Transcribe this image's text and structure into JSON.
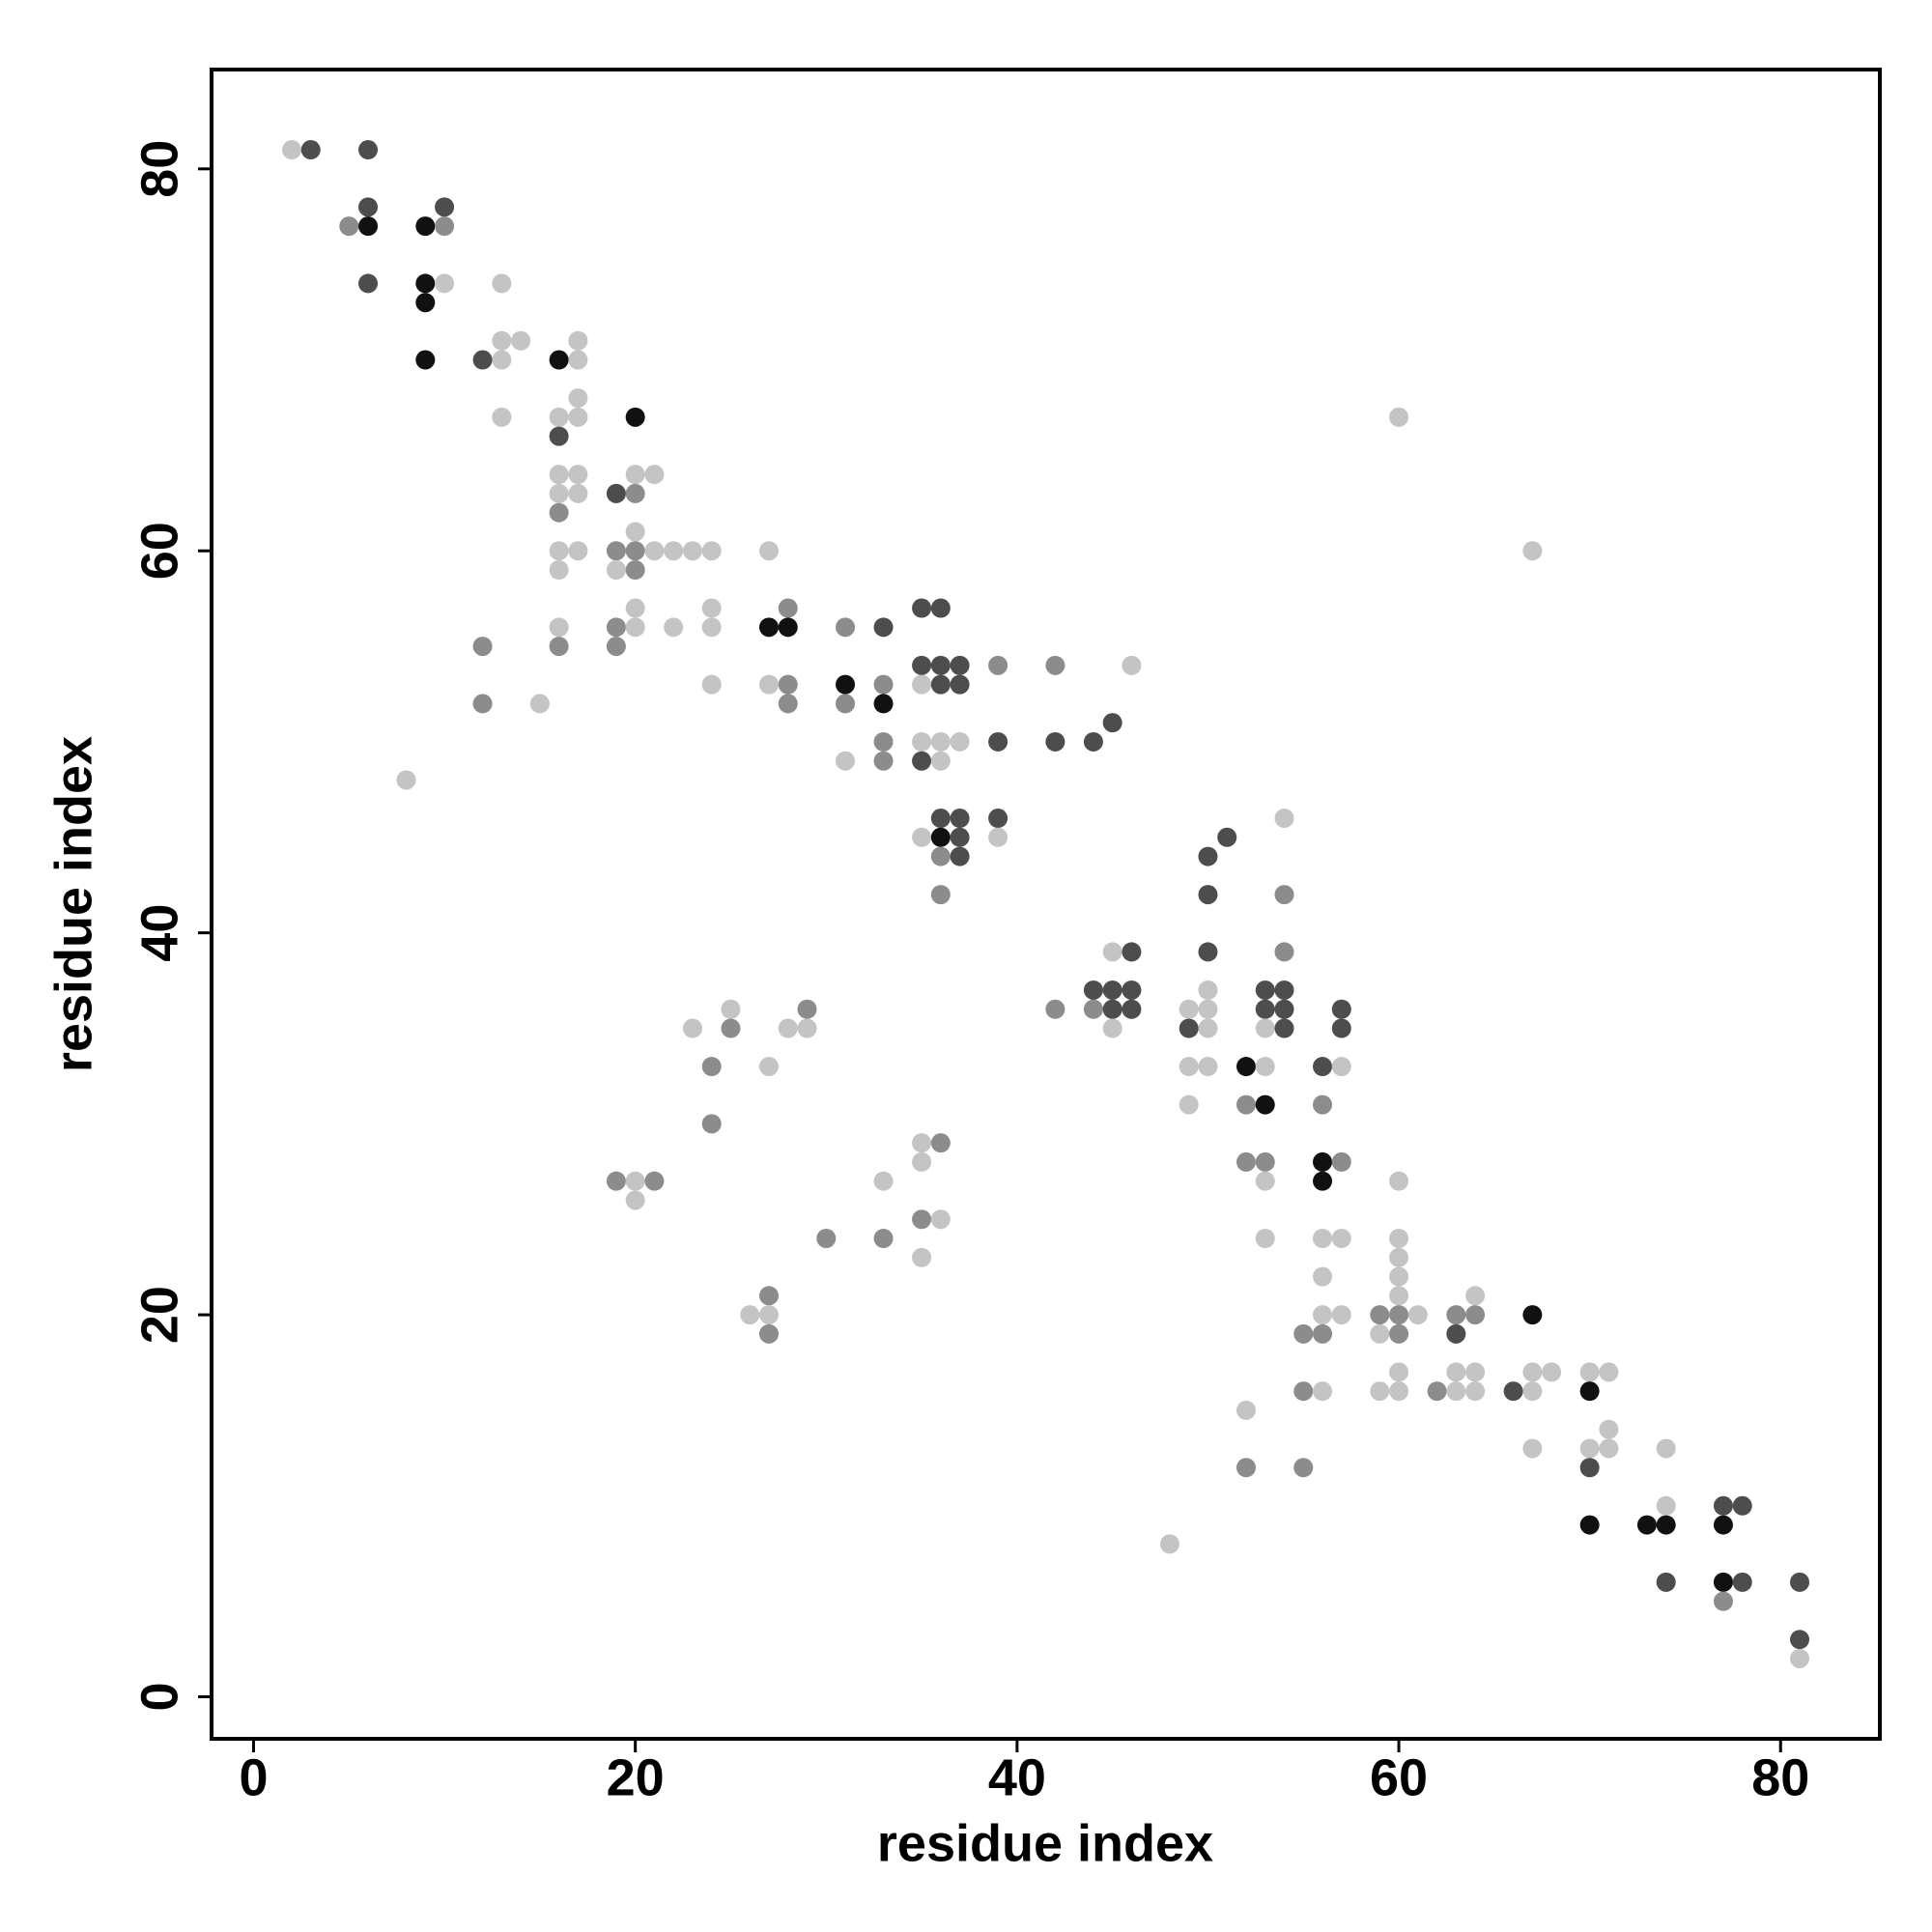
{
  "chart_data": {
    "type": "scatter",
    "xlabel": "residue index",
    "ylabel": "residue index",
    "xlim": [
      -2.2,
      85.2
    ],
    "ylim": [
      -2.2,
      85.2
    ],
    "xticks": [
      0,
      20,
      40,
      60,
      80
    ],
    "yticks": [
      0,
      20,
      40,
      60,
      80
    ],
    "grid": false,
    "x": [
      2,
      3,
      6,
      6,
      10,
      5,
      6,
      9,
      10,
      6,
      9,
      10,
      13,
      9,
      13,
      14,
      17,
      9,
      12,
      13,
      16,
      17,
      17,
      13,
      16,
      17,
      20,
      60,
      16,
      16,
      17,
      20,
      21,
      16,
      17,
      19,
      20,
      16,
      20,
      16,
      17,
      19,
      20,
      21,
      22,
      23,
      24,
      27,
      67,
      16,
      19,
      20,
      20,
      24,
      28,
      35,
      36,
      16,
      19,
      20,
      22,
      24,
      27,
      28,
      31,
      33,
      12,
      16,
      19,
      35,
      36,
      37,
      39,
      42,
      46,
      24,
      27,
      28,
      31,
      33,
      35,
      36,
      37,
      12,
      15,
      28,
      31,
      33,
      45,
      33,
      35,
      36,
      37,
      39,
      42,
      44,
      31,
      33,
      35,
      36,
      8,
      36,
      37,
      39,
      54,
      35,
      36,
      37,
      39,
      51,
      36,
      37,
      50,
      36,
      50,
      54,
      45,
      46,
      50,
      54,
      44,
      45,
      46,
      50,
      53,
      54,
      25,
      29,
      42,
      44,
      45,
      46,
      49,
      50,
      53,
      54,
      57,
      23,
      25,
      28,
      29,
      45,
      49,
      50,
      53,
      54,
      57,
      24,
      27,
      49,
      50,
      52,
      53,
      56,
      57,
      49,
      52,
      53,
      56,
      24,
      35,
      36,
      35,
      52,
      53,
      56,
      57,
      19,
      20,
      21,
      33,
      53,
      56,
      60,
      20,
      35,
      36,
      30,
      33,
      53,
      56,
      57,
      60,
      35,
      60,
      56,
      60,
      27,
      60,
      64,
      26,
      27,
      56,
      57,
      59,
      60,
      61,
      63,
      64,
      67,
      27,
      55,
      56,
      59,
      60,
      63,
      60,
      63,
      64,
      67,
      68,
      70,
      71,
      55,
      56,
      59,
      60,
      62,
      63,
      64,
      66,
      67,
      70,
      52,
      71,
      67,
      70,
      71,
      74,
      52,
      55,
      70,
      74,
      77,
      78,
      70,
      73,
      74,
      77,
      48,
      74,
      77,
      78,
      81,
      77,
      81,
      81
    ],
    "y": [
      81,
      81,
      81,
      78,
      78,
      77,
      77,
      77,
      77,
      74,
      74,
      74,
      74,
      73,
      71,
      71,
      71,
      70,
      70,
      70,
      70,
      70,
      68,
      67,
      67,
      67,
      67,
      67,
      66,
      64,
      64,
      64,
      64,
      63,
      63,
      63,
      63,
      62,
      61,
      60,
      60,
      60,
      60,
      60,
      60,
      60,
      60,
      60,
      60,
      59,
      59,
      59,
      57,
      57,
      57,
      57,
      57,
      56,
      56,
      56,
      56,
      56,
      56,
      56,
      56,
      56,
      55,
      55,
      55,
      54,
      54,
      54,
      54,
      54,
      54,
      53,
      53,
      53,
      53,
      53,
      53,
      53,
      53,
      52,
      52,
      52,
      52,
      52,
      51,
      50,
      50,
      50,
      50,
      50,
      50,
      50,
      49,
      49,
      49,
      49,
      48,
      46,
      46,
      46,
      46,
      45,
      45,
      45,
      45,
      45,
      44,
      44,
      44,
      42,
      42,
      42,
      39,
      39,
      39,
      39,
      37,
      37,
      37,
      37,
      37,
      37,
      36,
      36,
      36,
      36,
      36,
      36,
      36,
      36,
      36,
      36,
      36,
      35,
      35,
      35,
      35,
      35,
      35,
      35,
      35,
      35,
      35,
      33,
      33,
      33,
      33,
      33,
      33,
      33,
      33,
      31,
      31,
      31,
      31,
      30,
      29,
      29,
      28,
      28,
      28,
      28,
      28,
      27,
      27,
      27,
      27,
      27,
      27,
      27,
      26,
      25,
      25,
      24,
      24,
      24,
      24,
      24,
      24,
      23,
      23,
      22,
      22,
      21,
      21,
      21,
      20,
      20,
      20,
      20,
      20,
      20,
      20,
      20,
      20,
      20,
      19,
      19,
      19,
      19,
      19,
      19,
      17,
      17,
      17,
      17,
      17,
      17,
      17,
      16,
      16,
      16,
      16,
      16,
      16,
      16,
      16,
      16,
      16,
      15,
      14,
      13,
      13,
      13,
      13,
      12,
      12,
      12,
      10,
      10,
      10,
      9,
      9,
      9,
      9,
      8,
      6,
      6,
      6,
      6,
      5,
      3,
      2
    ],
    "colors": [
      "#c4c4c4",
      "#4d4d4d",
      "#4d4d4d",
      "#4d4d4d",
      "#4d4d4d",
      "#8c8c8c",
      "#111111",
      "#111111",
      "#8c8c8c",
      "#4d4d4d",
      "#111111",
      "#c4c4c4",
      "#c4c4c4",
      "#111111",
      "#c4c4c4",
      "#c4c4c4",
      "#c4c4c4",
      "#111111",
      "#4d4d4d",
      "#c4c4c4",
      "#111111",
      "#c4c4c4",
      "#c4c4c4",
      "#c4c4c4",
      "#c4c4c4",
      "#c4c4c4",
      "#111111",
      "#c4c4c4",
      "#4d4d4d",
      "#c4c4c4",
      "#c4c4c4",
      "#c4c4c4",
      "#c4c4c4",
      "#c4c4c4",
      "#c4c4c4",
      "#4d4d4d",
      "#8c8c8c",
      "#8c8c8c",
      "#c4c4c4",
      "#c4c4c4",
      "#c4c4c4",
      "#8c8c8c",
      "#8c8c8c",
      "#c4c4c4",
      "#c4c4c4",
      "#c4c4c4",
      "#c4c4c4",
      "#c4c4c4",
      "#c4c4c4",
      "#c4c4c4",
      "#c4c4c4",
      "#8c8c8c",
      "#c4c4c4",
      "#c4c4c4",
      "#8c8c8c",
      "#4d4d4d",
      "#4d4d4d",
      "#c4c4c4",
      "#8c8c8c",
      "#c4c4c4",
      "#c4c4c4",
      "#c4c4c4",
      "#111111",
      "#111111",
      "#8c8c8c",
      "#4d4d4d",
      "#8c8c8c",
      "#8c8c8c",
      "#8c8c8c",
      "#4d4d4d",
      "#4d4d4d",
      "#4d4d4d",
      "#8c8c8c",
      "#8c8c8c",
      "#c4c4c4",
      "#c4c4c4",
      "#c4c4c4",
      "#8c8c8c",
      "#111111",
      "#8c8c8c",
      "#c4c4c4",
      "#4d4d4d",
      "#4d4d4d",
      "#8c8c8c",
      "#c4c4c4",
      "#8c8c8c",
      "#8c8c8c",
      "#111111",
      "#4d4d4d",
      "#8c8c8c",
      "#c4c4c4",
      "#c4c4c4",
      "#c4c4c4",
      "#4d4d4d",
      "#4d4d4d",
      "#4d4d4d",
      "#c4c4c4",
      "#8c8c8c",
      "#4d4d4d",
      "#c4c4c4",
      "#c4c4c4",
      "#4d4d4d",
      "#4d4d4d",
      "#4d4d4d",
      "#c4c4c4",
      "#c4c4c4",
      "#111111",
      "#4d4d4d",
      "#c4c4c4",
      "#4d4d4d",
      "#8c8c8c",
      "#4d4d4d",
      "#4d4d4d",
      "#8c8c8c",
      "#4d4d4d",
      "#8c8c8c",
      "#c4c4c4",
      "#4d4d4d",
      "#4d4d4d",
      "#8c8c8c",
      "#4d4d4d",
      "#4d4d4d",
      "#4d4d4d",
      "#c4c4c4",
      "#4d4d4d",
      "#4d4d4d",
      "#c4c4c4",
      "#8c8c8c",
      "#8c8c8c",
      "#8c8c8c",
      "#4d4d4d",
      "#4d4d4d",
      "#c4c4c4",
      "#c4c4c4",
      "#4d4d4d",
      "#4d4d4d",
      "#4d4d4d",
      "#c4c4c4",
      "#8c8c8c",
      "#c4c4c4",
      "#c4c4c4",
      "#c4c4c4",
      "#4d4d4d",
      "#c4c4c4",
      "#c4c4c4",
      "#4d4d4d",
      "#4d4d4d",
      "#8c8c8c",
      "#c4c4c4",
      "#c4c4c4",
      "#c4c4c4",
      "#111111",
      "#c4c4c4",
      "#4d4d4d",
      "#c4c4c4",
      "#c4c4c4",
      "#8c8c8c",
      "#111111",
      "#8c8c8c",
      "#8c8c8c",
      "#c4c4c4",
      "#8c8c8c",
      "#c4c4c4",
      "#8c8c8c",
      "#8c8c8c",
      "#111111",
      "#8c8c8c",
      "#8c8c8c",
      "#c4c4c4",
      "#8c8c8c",
      "#c4c4c4",
      "#c4c4c4",
      "#111111",
      "#c4c4c4",
      "#c4c4c4",
      "#8c8c8c",
      "#c4c4c4",
      "#8c8c8c",
      "#8c8c8c",
      "#c4c4c4",
      "#c4c4c4",
      "#c4c4c4",
      "#c4c4c4",
      "#c4c4c4",
      "#c4c4c4",
      "#c4c4c4",
      "#c4c4c4",
      "#8c8c8c",
      "#c4c4c4",
      "#c4c4c4",
      "#c4c4c4",
      "#c4c4c4",
      "#c4c4c4",
      "#c4c4c4",
      "#8c8c8c",
      "#8c8c8c",
      "#c4c4c4",
      "#8c8c8c",
      "#8c8c8c",
      "#111111",
      "#8c8c8c",
      "#8c8c8c",
      "#8c8c8c",
      "#c4c4c4",
      "#8c8c8c",
      "#4d4d4d",
      "#c4c4c4",
      "#c4c4c4",
      "#c4c4c4",
      "#c4c4c4",
      "#c4c4c4",
      "#c4c4c4",
      "#c4c4c4",
      "#8c8c8c",
      "#c4c4c4",
      "#c4c4c4",
      "#c4c4c4",
      "#8c8c8c",
      "#c4c4c4",
      "#c4c4c4",
      "#4d4d4d",
      "#c4c4c4",
      "#111111",
      "#c4c4c4",
      "#c4c4c4",
      "#c4c4c4",
      "#c4c4c4",
      "#c4c4c4",
      "#c4c4c4",
      "#8c8c8c",
      "#8c8c8c",
      "#4d4d4d",
      "#c4c4c4",
      "#4d4d4d",
      "#4d4d4d",
      "#111111",
      "#111111",
      "#111111",
      "#111111",
      "#c4c4c4",
      "#4d4d4d",
      "#111111",
      "#4d4d4d",
      "#4d4d4d",
      "#8c8c8c",
      "#4d4d4d",
      "#c4c4c4"
    ]
  }
}
